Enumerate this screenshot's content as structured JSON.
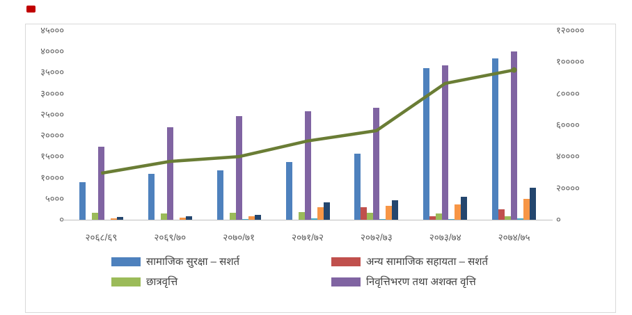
{
  "decorations": {
    "red_mark_color": "#C00000",
    "frame_border_color": "#D9D9D9",
    "axis_line_color": "#BFBFBF",
    "axis_text_color": "#595959",
    "legend_text_color": "#404040"
  },
  "chart_data": {
    "type": "bar+line",
    "title": "",
    "grid": false,
    "legend_position": "bottom",
    "categories": [
      "२०६८/६९",
      "२०६९/७०",
      "२०७०/७१",
      "२०७१/७२",
      "२०७२/७३",
      "२०७३/७४",
      "२०७४/७५"
    ],
    "left_axis": {
      "min": 0,
      "max": 45000,
      "step": 5000,
      "tick_labels": [
        "०",
        "५०००",
        "१००००",
        "१५०००",
        "२००००",
        "२५०००",
        "३००००",
        "३५०००",
        "४००००",
        "४५०००"
      ]
    },
    "right_axis": {
      "min": 0,
      "max": 120000,
      "step": 20000,
      "tick_labels": [
        "०",
        "२००००",
        "४००००",
        "६००००",
        "८००००",
        "१०००००",
        "१२००००"
      ]
    },
    "bar_series": [
      {
        "name": "सामाजिक सुरक्षा – सशर्त",
        "color": "#4E81BD",
        "axis": "left",
        "values": [
          9000,
          11000,
          11700,
          13700,
          15700,
          36100,
          38400
        ]
      },
      {
        "name": "अन्य सामाजिक सहायता – सशर्त",
        "color": "#C0504D",
        "axis": "left",
        "values": [
          0,
          0,
          0,
          0,
          2900,
          800,
          2400
        ]
      },
      {
        "name": "छात्रवृत्ति",
        "color": "#9BBB59",
        "axis": "left",
        "values": [
          1700,
          1500,
          1600,
          1800,
          1700,
          1500,
          800
        ]
      },
      {
        "name": "निवृत्तिभरण तथा अशक्त वृत्ति",
        "color": "#8064A2",
        "axis": "left",
        "values": [
          17400,
          22000,
          24600,
          25800,
          26700,
          36800,
          40000
        ]
      },
      {
        "name": "",
        "color": "#4BACC6",
        "axis": "left",
        "values": [
          0,
          0,
          200,
          400,
          200,
          100,
          300
        ]
      },
      {
        "name": "",
        "color": "#F79646",
        "axis": "left",
        "values": [
          300,
          500,
          800,
          2900,
          3300,
          3700,
          5000
        ]
      },
      {
        "name": "",
        "color": "#24466E",
        "axis": "left",
        "values": [
          700,
          900,
          1100,
          4200,
          4600,
          5400,
          7600
        ]
      }
    ],
    "line_series": {
      "name": "",
      "color": "#6A7D35",
      "axis": "right",
      "marker_on_last_point": true,
      "values": [
        29500,
        37000,
        40000,
        50000,
        56500,
        86500,
        95000
      ]
    },
    "legend": [
      {
        "label": "सामाजिक सुरक्षा – सशर्त",
        "color": "#4E81BD"
      },
      {
        "label": "अन्य सामाजिक सहायता – सशर्त",
        "color": "#C0504D"
      },
      {
        "label": "छात्रवृत्ति",
        "color": "#9BBB59"
      },
      {
        "label": "निवृत्तिभरण तथा अशक्त वृत्ति",
        "color": "#8064A2"
      }
    ]
  }
}
